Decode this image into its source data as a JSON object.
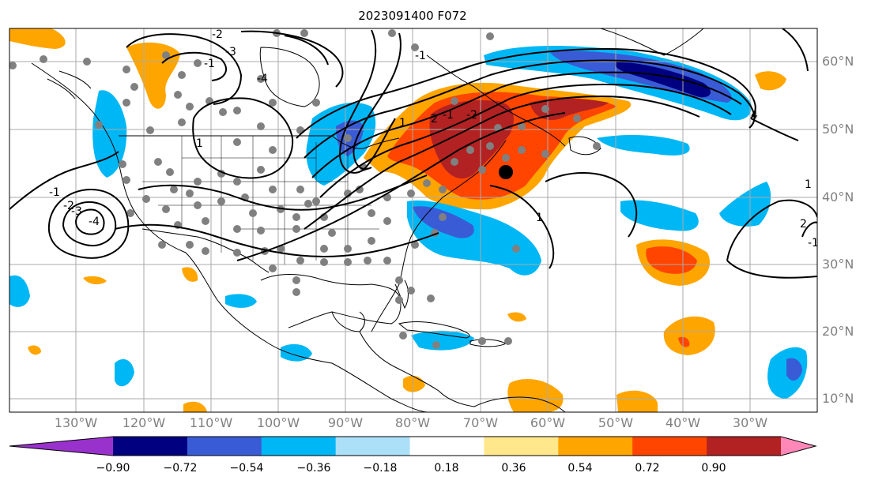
{
  "title": "2023091400 F072",
  "map": {
    "lon_range": [
      -139,
      -22
    ],
    "lat_range": [
      8,
      65
    ],
    "grid": true,
    "lon_ticks": [
      "130°W",
      "120°W",
      "110°W",
      "100°W",
      "90°W",
      "80°W",
      "70°W",
      "60°W",
      "50°W",
      "40°W",
      "30°W"
    ],
    "lat_ticks": [
      "10°N",
      "20°N",
      "30°N",
      "40°N",
      "50°N",
      "60°N"
    ],
    "colorbar": {
      "levels": [
        "−0.90",
        "−0.72",
        "−0.54",
        "−0.36",
        "−0.18",
        "0.18",
        "0.36",
        "0.54",
        "0.72",
        "0.90"
      ],
      "colors": [
        "#9932cc",
        "#000080",
        "#3a5bd6",
        "#00b7f5",
        "#acdff8",
        "#ffffff",
        "#ffe88c",
        "#ffa500",
        "#ff4500",
        "#b22222",
        "#ff88b8"
      ]
    },
    "contour_labels": [
      "-1",
      "-2",
      "-3",
      "-4",
      "-1",
      "-2",
      "-3",
      "-4",
      "1",
      "-1",
      "4",
      "1",
      "2",
      "-1",
      "-2",
      "1",
      "1",
      "2",
      "-1"
    ],
    "colors": {
      "grid": "#aaaaaa",
      "coast": "#000000",
      "stations": "#808080",
      "contour": "#000000"
    }
  }
}
